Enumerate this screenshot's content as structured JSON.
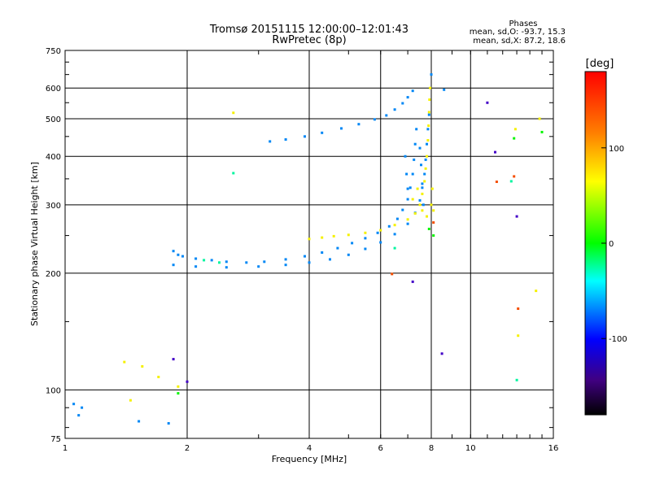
{
  "chart_data": {
    "type": "scatter",
    "title": "Tromsø 20151115 12:00:00–12:01:43",
    "subtitle": "RwPretec (8p)",
    "xlabel": "Frequency [MHz]",
    "ylabel": "Stationary phase Virtual Height [km]",
    "x_scale": "log",
    "y_scale": "log",
    "xlim": [
      1,
      16
    ],
    "ylim": [
      75,
      750
    ],
    "x_ticks": [
      1,
      2,
      4,
      6,
      8,
      10,
      16
    ],
    "x_tick_labels": [
      "1",
      "2",
      "4",
      "6",
      "8",
      "10",
      "16"
    ],
    "y_ticks": [
      75,
      100,
      200,
      300,
      400,
      500,
      600,
      750
    ],
    "y_tick_labels": [
      "75",
      "100",
      "200",
      "300",
      "400",
      "500",
      "600",
      "750"
    ],
    "grid": true,
    "stats": {
      "label": "Phases",
      "o_mode": "mean, sd,O: -93.7, 15.3",
      "x_mode": "mean, sd,X:  87.2, 18.6"
    },
    "colorbar": {
      "label": "[deg]",
      "range": [
        -180,
        180
      ],
      "ticks": [
        100,
        0,
        -100
      ],
      "tick_labels": [
        "100",
        "0",
        "-100"
      ]
    },
    "series": [
      {
        "color_phase": -100,
        "points": [
          [
            1.85,
            228
          ],
          [
            1.9,
            223
          ],
          [
            1.95,
            221
          ],
          [
            2.1,
            218
          ],
          [
            2.3,
            216
          ],
          [
            2.5,
            214
          ],
          [
            2.8,
            213
          ],
          [
            3.1,
            214
          ],
          [
            3.5,
            217
          ],
          [
            3.9,
            221
          ],
          [
            4.3,
            226
          ],
          [
            4.7,
            232
          ],
          [
            5.1,
            239
          ],
          [
            5.5,
            246
          ],
          [
            5.9,
            254
          ],
          [
            6.3,
            264
          ],
          [
            6.6,
            276
          ],
          [
            6.8,
            291
          ],
          [
            7.0,
            310
          ],
          [
            7.1,
            332
          ],
          [
            7.2,
            360
          ],
          [
            7.25,
            392
          ],
          [
            7.3,
            430
          ],
          [
            7.35,
            470
          ],
          [
            1.85,
            210
          ],
          [
            2.1,
            208
          ],
          [
            2.5,
            207
          ],
          [
            3.0,
            208
          ],
          [
            3.5,
            210
          ],
          [
            4.0,
            213
          ],
          [
            4.5,
            217
          ],
          [
            5.0,
            223
          ],
          [
            5.5,
            231
          ],
          [
            6.0,
            240
          ],
          [
            6.5,
            252
          ],
          [
            7.0,
            268
          ],
          [
            7.3,
            286
          ],
          [
            7.5,
            308
          ],
          [
            7.6,
            332
          ],
          [
            7.7,
            360
          ],
          [
            7.75,
            392
          ],
          [
            7.8,
            430
          ],
          [
            7.85,
            470
          ],
          [
            7.9,
            512
          ],
          [
            3.2,
            437
          ],
          [
            3.5,
            442
          ],
          [
            3.9,
            450
          ],
          [
            4.3,
            460
          ],
          [
            4.8,
            472
          ],
          [
            5.3,
            484
          ],
          [
            5.8,
            498
          ],
          [
            6.2,
            510
          ],
          [
            6.5,
            528
          ],
          [
            6.8,
            548
          ],
          [
            7.0,
            568
          ],
          [
            7.2,
            590
          ],
          [
            6.9,
            400
          ],
          [
            6.95,
            360
          ],
          [
            7.0,
            330
          ],
          [
            7.5,
            420
          ],
          [
            7.55,
            380
          ],
          [
            7.6,
            340
          ],
          [
            7.65,
            300
          ],
          [
            1.05,
            92
          ],
          [
            1.1,
            90
          ],
          [
            1.08,
            86
          ],
          [
            1.52,
            83
          ],
          [
            1.8,
            82
          ],
          [
            8.0,
            650
          ],
          [
            8.6,
            594
          ]
        ]
      },
      {
        "color_phase": 100,
        "points": [
          [
            4.0,
            245
          ],
          [
            4.3,
            247
          ],
          [
            4.6,
            249
          ],
          [
            5.0,
            251
          ],
          [
            5.5,
            254
          ],
          [
            6.0,
            258
          ],
          [
            6.5,
            266
          ],
          [
            7.0,
            275
          ],
          [
            7.3,
            285
          ],
          [
            7.5,
            300
          ],
          [
            7.6,
            320
          ],
          [
            7.7,
            345
          ],
          [
            7.75,
            372
          ],
          [
            7.8,
            400
          ],
          [
            7.85,
            440
          ],
          [
            7.88,
            480
          ],
          [
            7.9,
            520
          ],
          [
            7.92,
            560
          ],
          [
            7.95,
            600
          ],
          [
            7.2,
            310
          ],
          [
            7.4,
            330
          ],
          [
            7.6,
            290
          ],
          [
            7.8,
            280
          ],
          [
            8.0,
            300
          ],
          [
            8.1,
            290
          ],
          [
            8.05,
            330
          ],
          [
            1.4,
            118
          ],
          [
            1.45,
            94
          ],
          [
            1.55,
            115
          ],
          [
            1.7,
            108
          ],
          [
            1.9,
            102
          ],
          [
            2.6,
            518
          ],
          [
            12.9,
            470
          ],
          [
            14.8,
            500
          ],
          [
            14.5,
            180
          ],
          [
            13.1,
            138
          ]
        ]
      },
      {
        "color_phase": 20,
        "points": [
          [
            12.8,
            445
          ],
          [
            15.0,
            462
          ],
          [
            1.9,
            98
          ],
          [
            8.1,
            250
          ],
          [
            7.9,
            260
          ]
        ]
      },
      {
        "color_phase": -35,
        "points": [
          [
            2.6,
            362
          ],
          [
            2.2,
            216
          ],
          [
            2.4,
            213
          ],
          [
            6.5,
            232
          ],
          [
            13.0,
            106
          ],
          [
            12.6,
            345
          ]
        ]
      },
      {
        "color_phase": 155,
        "points": [
          [
            6.4,
            199
          ],
          [
            13.1,
            162
          ],
          [
            11.6,
            344
          ],
          [
            12.8,
            355
          ],
          [
            8.1,
            270
          ]
        ]
      },
      {
        "color_phase": -150,
        "points": [
          [
            1.85,
            120
          ],
          [
            2.0,
            105
          ],
          [
            7.2,
            190
          ],
          [
            8.5,
            124
          ],
          [
            13.0,
            280
          ],
          [
            11.0,
            550
          ],
          [
            11.5,
            410
          ]
        ]
      }
    ]
  }
}
